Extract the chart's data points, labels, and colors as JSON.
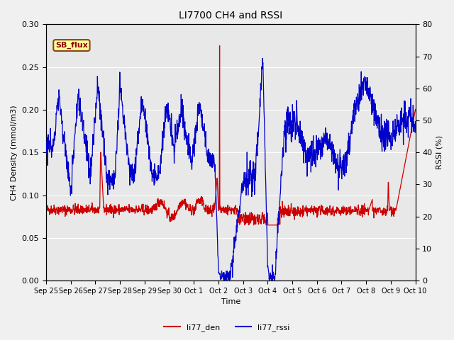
{
  "title": "LI7700 CH4 and RSSI",
  "xlabel": "Time",
  "ylabel_left": "CH4 Density (mmol/m3)",
  "ylabel_right": "RSSI (%)",
  "ylim_left": [
    0.0,
    0.3
  ],
  "ylim_right": [
    0,
    80
  ],
  "annotation_text": "SB_flux",
  "annotation_box_facecolor": "#ffff99",
  "annotation_box_edgecolor": "#8B4513",
  "background_color": "#f0f0f0",
  "plot_bg_color": "#e8e8e8",
  "line_den_color": "#cc0000",
  "line_rssi_color": "#0000cc",
  "legend_den": "li77_den",
  "legend_rssi": "li77_rssi",
  "x_tick_labels": [
    "Sep 25",
    "Sep 26",
    "Sep 27",
    "Sep 28",
    "Sep 29",
    "Sep 30",
    "Oct 1",
    "Oct 2",
    "Oct 3",
    "Oct 4",
    "Oct 5",
    "Oct 6",
    "Oct 7",
    "Oct 8",
    "Oct 9",
    "Oct 10"
  ],
  "n_days": 15
}
